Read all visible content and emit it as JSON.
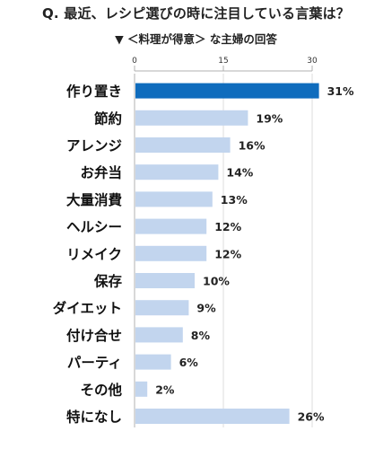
{
  "title": "Q. 最近、レシピ選びの時に注目している言葉は？",
  "subtitle": "▼ ＜料理が得意＞ な主婦の回答",
  "colors": {
    "highlight": "#0f6cbd",
    "bar": "#c2d5ee",
    "axis": "#b0b0b0",
    "grid": "#d6d6d6"
  },
  "chart_data": {
    "type": "bar",
    "orientation": "horizontal",
    "title": "Q. 最近、レシピ選びの時に注目している言葉は？",
    "subtitle": "▼ ＜料理が得意＞ な主婦の回答",
    "categories": [
      "作り置き",
      "節約",
      "アレンジ",
      "お弁当",
      "大量消費",
      "ヘルシー",
      "リメイク",
      "保存",
      "ダイエット",
      "付け合せ",
      "パーティ",
      "その他",
      "特になし"
    ],
    "values": [
      31,
      19,
      16,
      14,
      13,
      12,
      12,
      10,
      9,
      8,
      6,
      2,
      26
    ],
    "value_labels": [
      "31%",
      "19%",
      "16%",
      "14%",
      "13%",
      "12%",
      "12%",
      "10%",
      "9%",
      "8%",
      "6%",
      "2%",
      "26%"
    ],
    "xlim": [
      0,
      30
    ],
    "xticks": [
      "0",
      "15",
      "30"
    ],
    "highlight_index": 0,
    "grid": true,
    "xlabel": "",
    "ylabel": ""
  }
}
